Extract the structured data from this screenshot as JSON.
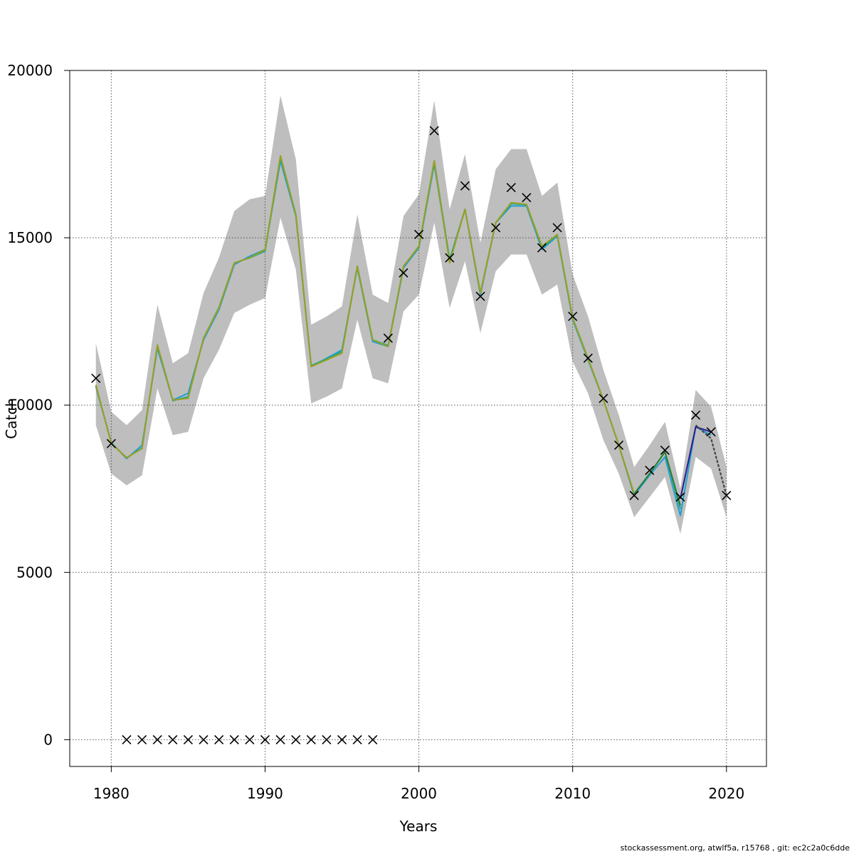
{
  "chart_data": {
    "type": "line",
    "xlabel": "Years",
    "ylabel": "Catch",
    "xlim": [
      1977.3,
      2022.6
    ],
    "ylim": [
      -800,
      20000
    ],
    "x_ticks": [
      1980,
      1990,
      2000,
      2010,
      2020
    ],
    "x_tick_labels": [
      "1980",
      "1990",
      "2000",
      "2010",
      "2020"
    ],
    "y_ticks": [
      0,
      5000,
      10000,
      15000,
      20000
    ],
    "y_tick_labels": [
      "0",
      "5000",
      "10000",
      "15000",
      "20000"
    ],
    "grid": true,
    "band": {
      "x": [
        1979,
        1980,
        1981,
        1982,
        1983,
        1984,
        1985,
        1986,
        1987,
        1988,
        1989,
        1990,
        1991,
        1992,
        1993,
        1994,
        1995,
        1996,
        1997,
        1998,
        1999,
        2000,
        2001,
        2002,
        2003,
        2004,
        2005,
        2006,
        2007,
        2008,
        2009,
        2010,
        2011,
        2012,
        2013,
        2014,
        2015,
        2016,
        2017,
        2018,
        2019,
        2020
      ],
      "lower": [
        9400,
        7950,
        7600,
        7900,
        10500,
        9100,
        9200,
        10800,
        11650,
        12750,
        13000,
        13200,
        15600,
        14050,
        10050,
        10250,
        10500,
        12550,
        10800,
        10650,
        12800,
        13300,
        15450,
        12900,
        14300,
        12150,
        14000,
        14500,
        14500,
        13300,
        13600,
        11300,
        10350,
        8950,
        7950,
        6650,
        7250,
        7850,
        6150,
        8450,
        8100,
        6650
      ],
      "upper": [
        11850,
        9800,
        9400,
        9850,
        13000,
        11250,
        11550,
        13350,
        14400,
        15800,
        16150,
        16250,
        19250,
        17350,
        12400,
        12650,
        12950,
        15700,
        13300,
        13050,
        15650,
        16300,
        19100,
        15850,
        17500,
        14850,
        17050,
        17650,
        17650,
        16250,
        16650,
        13900,
        12650,
        11050,
        9700,
        8150,
        8800,
        9500,
        7500,
        10450,
        9950,
        8150
      ]
    },
    "series": [
      {
        "color": "#1f9fd0",
        "x": [
          1979,
          1980,
          1981,
          1982,
          1983,
          1984,
          1985,
          1986,
          1987,
          1988,
          1989,
          1990,
          1991,
          1992,
          1993,
          1994,
          1995,
          1996,
          1997,
          1998,
          1999,
          2000,
          2001,
          2002,
          2003,
          2004,
          2005,
          2006,
          2007,
          2008,
          2009,
          2010,
          2011,
          2012,
          2013,
          2014,
          2015,
          2016,
          2017,
          2018,
          2019
        ],
        "values": [
          10550,
          8880,
          8400,
          8800,
          11700,
          10150,
          10350,
          11950,
          12850,
          14200,
          14450,
          14650,
          17300,
          15650,
          11150,
          11400,
          11650,
          14100,
          11900,
          11750,
          14100,
          14700,
          17200,
          14300,
          15850,
          13300,
          15450,
          15950,
          15950,
          14650,
          15050,
          12550,
          11350,
          10150,
          8800,
          7300,
          7900,
          8450,
          6700,
          9350,
          9100
        ]
      },
      {
        "color": "#26a88a",
        "x": [
          1979,
          1980,
          1981,
          1982,
          1983,
          1984,
          1985,
          1986,
          1987,
          1988,
          1989,
          1990,
          1991,
          1992,
          1993,
          1994,
          1995,
          1996,
          1997,
          1998,
          1999,
          2000,
          2001,
          2002,
          2003,
          2004,
          2005,
          2006,
          2007,
          2008,
          2009,
          2010,
          2011,
          2012,
          2013,
          2014,
          2015,
          2016,
          2017
        ],
        "values": [
          10600,
          8860,
          8420,
          8720,
          11780,
          10130,
          10250,
          12000,
          12920,
          14250,
          14400,
          14600,
          17400,
          15700,
          11180,
          11380,
          11600,
          14150,
          11950,
          11780,
          14150,
          14720,
          17300,
          14350,
          15850,
          13350,
          15450,
          16020,
          15990,
          14700,
          15080,
          12600,
          11380,
          10150,
          8800,
          7340,
          7950,
          8600,
          6900
        ]
      },
      {
        "color": "#9aa021",
        "x": [
          1979,
          1980,
          1981,
          1982,
          1983,
          1984,
          1985,
          1986,
          1987,
          1988,
          1989,
          1990,
          1991,
          1992,
          1993,
          1994,
          1995,
          1996,
          1997,
          1998,
          1999,
          2000,
          2001,
          2002,
          2003,
          2004,
          2005,
          2006,
          2007,
          2008,
          2009,
          2010,
          2011,
          2012,
          2013,
          2014
        ],
        "values": [
          10600,
          8850,
          8430,
          8700,
          11800,
          10150,
          10200,
          12000,
          12900,
          14250,
          14400,
          14650,
          17450,
          15700,
          11150,
          11350,
          11550,
          14150,
          11950,
          11750,
          14150,
          14750,
          17300,
          14250,
          15850,
          13350,
          15450,
          16050,
          16000,
          14750,
          15100,
          12600,
          11400,
          10150,
          8800,
          7350
        ]
      },
      {
        "color": "#2e7d32",
        "x": [
          2014,
          2015,
          2016,
          2017
        ],
        "values": [
          7350,
          7950,
          8600,
          7000
        ]
      },
      {
        "color": "#2b1a8f",
        "x": [
          2017,
          2018,
          2019
        ],
        "values": [
          7200,
          9350,
          9200
        ]
      },
      {
        "color": "#444444",
        "dashed": true,
        "x": [
          2018,
          2019,
          2020
        ],
        "values": [
          9400,
          9000,
          7300
        ]
      }
    ],
    "observed": {
      "x": [
        1979,
        1980,
        1981,
        1982,
        1983,
        1984,
        1985,
        1986,
        1987,
        1988,
        1989,
        1990,
        1991,
        1992,
        1993,
        1994,
        1995,
        1996,
        1997,
        1998,
        1999,
        2000,
        2001,
        2002,
        2003,
        2004,
        2005,
        2006,
        2007,
        2008,
        2009,
        2010,
        2011,
        2012,
        2013,
        2014,
        2015,
        2016,
        2017,
        2018,
        2019,
        2020
      ],
      "values": [
        10800,
        8850,
        0,
        0,
        0,
        0,
        0,
        0,
        0,
        0,
        0,
        0,
        0,
        0,
        0,
        0,
        0,
        0,
        0,
        12000,
        13950,
        15100,
        18200,
        14400,
        16550,
        13250,
        15300,
        16500,
        16200,
        14700,
        15300,
        12650,
        11400,
        10200,
        8800,
        7300,
        8050,
        8650,
        7250,
        9700,
        9200,
        7300
      ]
    }
  },
  "footer": "stockassessment.org, atwlf5a, r15768 , git: ec2c2a0c6dde"
}
